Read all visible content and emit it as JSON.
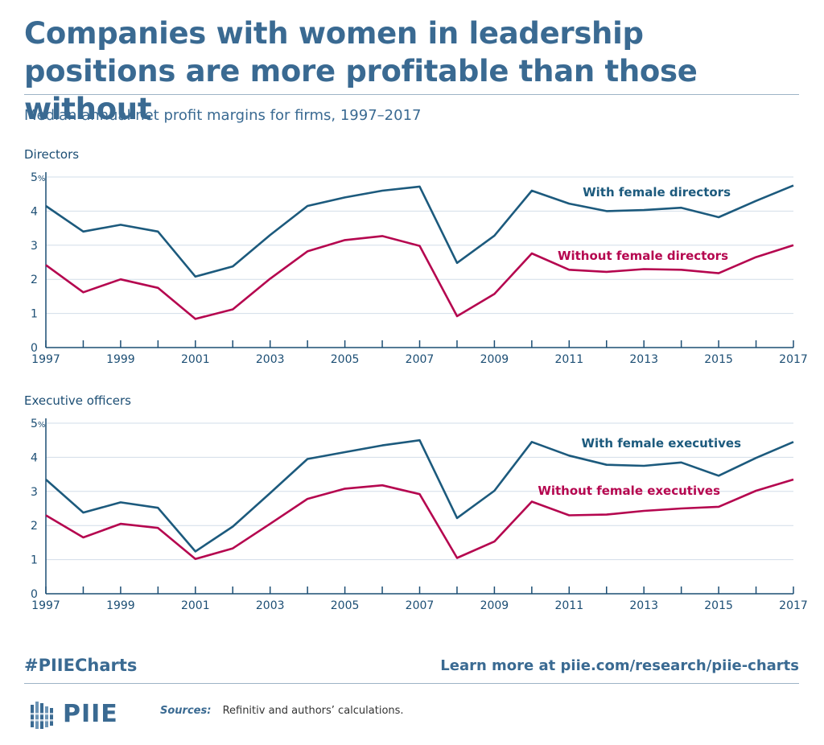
{
  "title": "Companies with women in leadership positions are more profitable than those without",
  "subtitle": "Median annual net profit margins for firms, 1997–2017",
  "footer": {
    "hashtag": "#PIIECharts",
    "learn_more": "Learn more at piie.com/research/piie-charts",
    "logo_text": "PIIE",
    "sources_label": "Sources:",
    "sources_text": "Refinitiv and authors’ calculations."
  },
  "colors": {
    "title": "#3a6a92",
    "with": "#1c5a7d",
    "without": "#b5064f",
    "grid": "#d2dde8",
    "axis": "#1c4e74"
  },
  "chart_data": [
    {
      "type": "line",
      "panel_title": "Directors",
      "x": [
        1997,
        1998,
        1999,
        2000,
        2001,
        2002,
        2003,
        2004,
        2005,
        2006,
        2007,
        2008,
        2009,
        2010,
        2011,
        2012,
        2013,
        2014,
        2015,
        2016,
        2017
      ],
      "x_tick_labels": [
        "1997",
        "1999",
        "2001",
        "2003",
        "2005",
        "2007",
        "2009",
        "2011",
        "2013",
        "2015",
        "2017"
      ],
      "y_tick_labels": [
        "0",
        "1",
        "2",
        "3",
        "4",
        "5%"
      ],
      "ylim": [
        0,
        5
      ],
      "series": [
        {
          "name": "With female directors",
          "color": "#1c5a7d",
          "values": [
            4.15,
            3.4,
            3.6,
            3.4,
            2.08,
            2.38,
            3.3,
            4.15,
            4.4,
            4.6,
            4.72,
            2.48,
            3.28,
            4.6,
            4.22,
            4.0,
            4.03,
            4.1,
            3.82,
            4.3,
            4.75
          ]
        },
        {
          "name": "Without female directors",
          "color": "#b5064f",
          "values": [
            2.42,
            1.62,
            2.0,
            1.75,
            0.84,
            1.12,
            2.02,
            2.82,
            3.15,
            3.27,
            2.98,
            0.92,
            1.57,
            2.76,
            2.28,
            2.22,
            2.3,
            2.28,
            2.18,
            2.65,
            3.0
          ]
        }
      ]
    },
    {
      "type": "line",
      "panel_title": "Executive officers",
      "x": [
        1997,
        1998,
        1999,
        2000,
        2001,
        2002,
        2003,
        2004,
        2005,
        2006,
        2007,
        2008,
        2009,
        2010,
        2011,
        2012,
        2013,
        2014,
        2015,
        2016,
        2017
      ],
      "x_tick_labels": [
        "1997",
        "1999",
        "2001",
        "2003",
        "2005",
        "2007",
        "2009",
        "2011",
        "2013",
        "2015",
        "2017"
      ],
      "y_tick_labels": [
        "0",
        "1",
        "2",
        "3",
        "4",
        "5%"
      ],
      "ylim": [
        0,
        5
      ],
      "series": [
        {
          "name": "With female executives",
          "color": "#1c5a7d",
          "values": [
            3.35,
            2.38,
            2.68,
            2.52,
            1.24,
            1.97,
            2.95,
            3.95,
            4.15,
            4.35,
            4.5,
            2.22,
            3.02,
            4.45,
            4.05,
            3.78,
            3.75,
            3.85,
            3.46,
            3.98,
            4.45
          ]
        },
        {
          "name": "Without female executives",
          "color": "#b5064f",
          "values": [
            2.3,
            1.65,
            2.05,
            1.93,
            1.02,
            1.33,
            2.05,
            2.78,
            3.08,
            3.18,
            2.92,
            1.05,
            1.53,
            2.7,
            2.3,
            2.32,
            2.43,
            2.5,
            2.55,
            3.02,
            3.35
          ]
        }
      ]
    }
  ]
}
